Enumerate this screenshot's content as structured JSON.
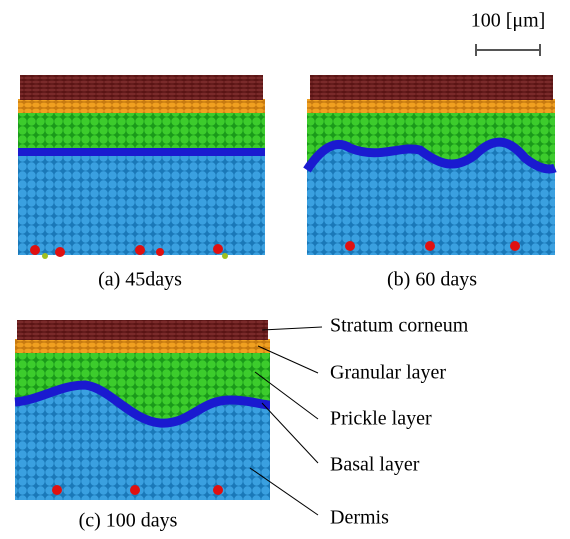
{
  "scale_bar": {
    "label": "100 [μm]"
  },
  "panels": [
    {
      "caption": "(a) 45days"
    },
    {
      "caption": "(b) 60 days"
    },
    {
      "caption": "(c) 100 days"
    }
  ],
  "layer_labels": [
    "Stratum corneum",
    "Granular layer",
    "Prickle layer",
    "Basal layer",
    "Dermis"
  ]
}
